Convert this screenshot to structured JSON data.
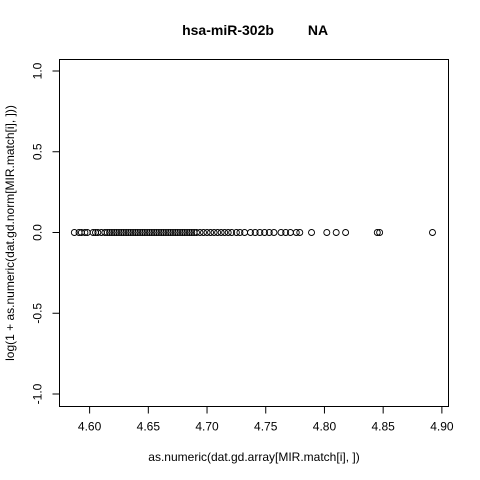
{
  "chart_data": {
    "type": "scatter",
    "title": "hsa-miR-302b",
    "title_suffix": "NA",
    "xlabel": "as.numeric(dat.gd.array[MIR.match[i], ])",
    "ylabel": "log(1 + as.numeric(dat.gd.norm[MIR.match[i], ]))",
    "xlim": [
      4.585,
      4.895
    ],
    "ylim": [
      -1.0,
      1.0
    ],
    "x_ticks": [
      4.6,
      4.65,
      4.7,
      4.75,
      4.8,
      4.85,
      4.9
    ],
    "x_tick_labels": [
      "4.60",
      "4.65",
      "4.70",
      "4.75",
      "4.80",
      "4.85",
      "4.90"
    ],
    "y_ticks": [
      -1.0,
      -0.5,
      0.0,
      0.5,
      1.0
    ],
    "y_tick_labels": [
      "-1.0",
      "-0.5",
      "0.0",
      "0.5",
      "1.0"
    ],
    "grid": false,
    "marker": "open-circle",
    "x": [
      4.587,
      4.591,
      4.593,
      4.596,
      4.598,
      4.603,
      4.605,
      4.607,
      4.61,
      4.613,
      4.615,
      4.617,
      4.619,
      4.621,
      4.623,
      4.625,
      4.627,
      4.629,
      4.631,
      4.633,
      4.635,
      4.637,
      4.639,
      4.641,
      4.643,
      4.645,
      4.647,
      4.649,
      4.651,
      4.653,
      4.655,
      4.657,
      4.659,
      4.661,
      4.663,
      4.665,
      4.667,
      4.669,
      4.671,
      4.673,
      4.675,
      4.677,
      4.679,
      4.681,
      4.683,
      4.685,
      4.687,
      4.689,
      4.691,
      4.694,
      4.697,
      4.7,
      4.703,
      4.706,
      4.709,
      4.712,
      4.715,
      4.718,
      4.721,
      4.725,
      4.728,
      4.732,
      4.737,
      4.741,
      4.745,
      4.749,
      4.753,
      4.757,
      4.763,
      4.767,
      4.771,
      4.776,
      4.779,
      4.789,
      4.802,
      4.81,
      4.818,
      4.845,
      4.847,
      4.892
    ],
    "y": [
      0,
      0,
      0,
      0,
      0,
      0,
      0,
      0,
      0,
      0,
      0,
      0,
      0,
      0,
      0,
      0,
      0,
      0,
      0,
      0,
      0,
      0,
      0,
      0,
      0,
      0,
      0,
      0,
      0,
      0,
      0,
      0,
      0,
      0,
      0,
      0,
      0,
      0,
      0,
      0,
      0,
      0,
      0,
      0,
      0,
      0,
      0,
      0,
      0,
      0,
      0,
      0,
      0,
      0,
      0,
      0,
      0,
      0,
      0,
      0,
      0,
      0,
      0,
      0,
      0,
      0,
      0,
      0,
      0,
      0,
      0,
      0,
      0,
      0,
      0,
      0,
      0,
      0,
      0,
      0
    ]
  }
}
